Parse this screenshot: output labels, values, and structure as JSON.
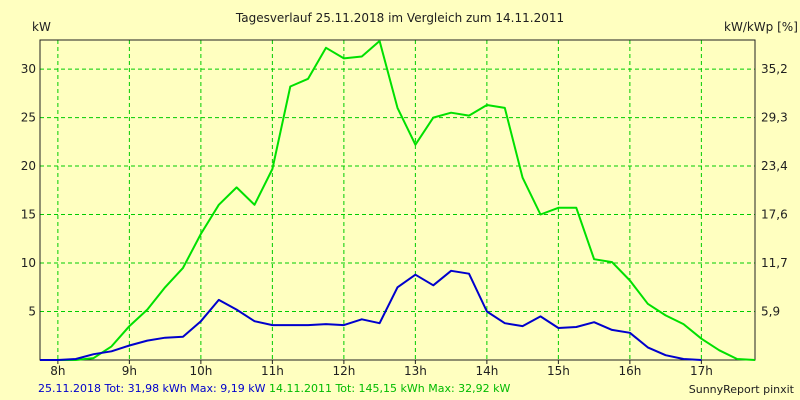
{
  "chart_data": {
    "type": "line",
    "title": "Tagesverlauf 25.11.2018 im Vergleich zum 14.11.2011",
    "ylabel_left": "kW",
    "ylabel_right": "kW/kWp [%]",
    "x_ticks": [
      "8h",
      "9h",
      "10h",
      "11h",
      "12h",
      "13h",
      "14h",
      "15h",
      "16h",
      "17h"
    ],
    "y_ticks_left": [
      "5",
      "10",
      "15",
      "20",
      "25",
      "30"
    ],
    "y_ticks_right": [
      "5,9",
      "11,7",
      "17,6",
      "23,4",
      "29,3",
      "35,2"
    ],
    "xlim": [
      7.75,
      17.75
    ],
    "ylim": [
      0,
      33
    ],
    "grid": true,
    "series": [
      {
        "name": "25.11.2018",
        "color": "#0000CC",
        "x": [
          7.75,
          8.0,
          8.25,
          8.5,
          8.75,
          9.0,
          9.25,
          9.5,
          9.75,
          10.0,
          10.25,
          10.5,
          10.75,
          11.0,
          11.25,
          11.5,
          11.75,
          12.0,
          12.25,
          12.5,
          12.75,
          13.0,
          13.25,
          13.5,
          13.75,
          14.0,
          14.25,
          14.5,
          14.75,
          15.0,
          15.25,
          15.5,
          15.75,
          16.0,
          16.25,
          16.5,
          16.75,
          17.0
        ],
        "values": [
          0.0,
          0.0,
          0.1,
          0.6,
          0.9,
          1.5,
          2.0,
          2.3,
          2.4,
          4.0,
          6.2,
          5.2,
          4.0,
          3.6,
          3.6,
          3.6,
          3.7,
          3.6,
          4.2,
          3.8,
          7.5,
          8.8,
          7.7,
          9.2,
          8.9,
          5.0,
          3.8,
          3.5,
          4.5,
          3.3,
          3.4,
          3.9,
          3.1,
          2.8,
          1.3,
          0.5,
          0.1,
          0.0
        ]
      },
      {
        "name": "14.11.2011",
        "color": "#00E000",
        "x": [
          7.75,
          8.0,
          8.25,
          8.5,
          8.75,
          9.0,
          9.25,
          9.5,
          9.75,
          10.0,
          10.25,
          10.5,
          10.75,
          11.0,
          11.25,
          11.5,
          11.75,
          12.0,
          12.25,
          12.5,
          12.75,
          13.0,
          13.25,
          13.5,
          13.75,
          14.0,
          14.25,
          14.5,
          14.75,
          15.0,
          15.25,
          15.5,
          15.75,
          16.0,
          16.25,
          16.5,
          16.75,
          17.0,
          17.25,
          17.5,
          17.75
        ],
        "values": [
          0.0,
          0.0,
          0.0,
          0.2,
          1.4,
          3.5,
          5.2,
          7.5,
          9.5,
          13.0,
          16.0,
          17.8,
          16.0,
          19.7,
          28.2,
          29.0,
          32.2,
          31.1,
          31.3,
          32.9,
          26.0,
          22.2,
          25.0,
          25.5,
          25.2,
          26.3,
          26.0,
          18.8,
          15.0,
          15.7,
          15.7,
          10.4,
          10.1,
          8.2,
          5.8,
          4.6,
          3.7,
          2.2,
          1.0,
          0.1,
          0.0
        ]
      }
    ]
  },
  "footer": {
    "blue_text": "25.11.2018 Tot: 31,98 kWh Max: 9,19 kW",
    "green_text": "14.11.2011 Tot: 145,15 kWh Max: 32,92 kW",
    "credit": "SunnyReport pinxit"
  },
  "colors": {
    "background": "#FFFFC0",
    "grid": "#00CC00",
    "axis": "#202020"
  }
}
